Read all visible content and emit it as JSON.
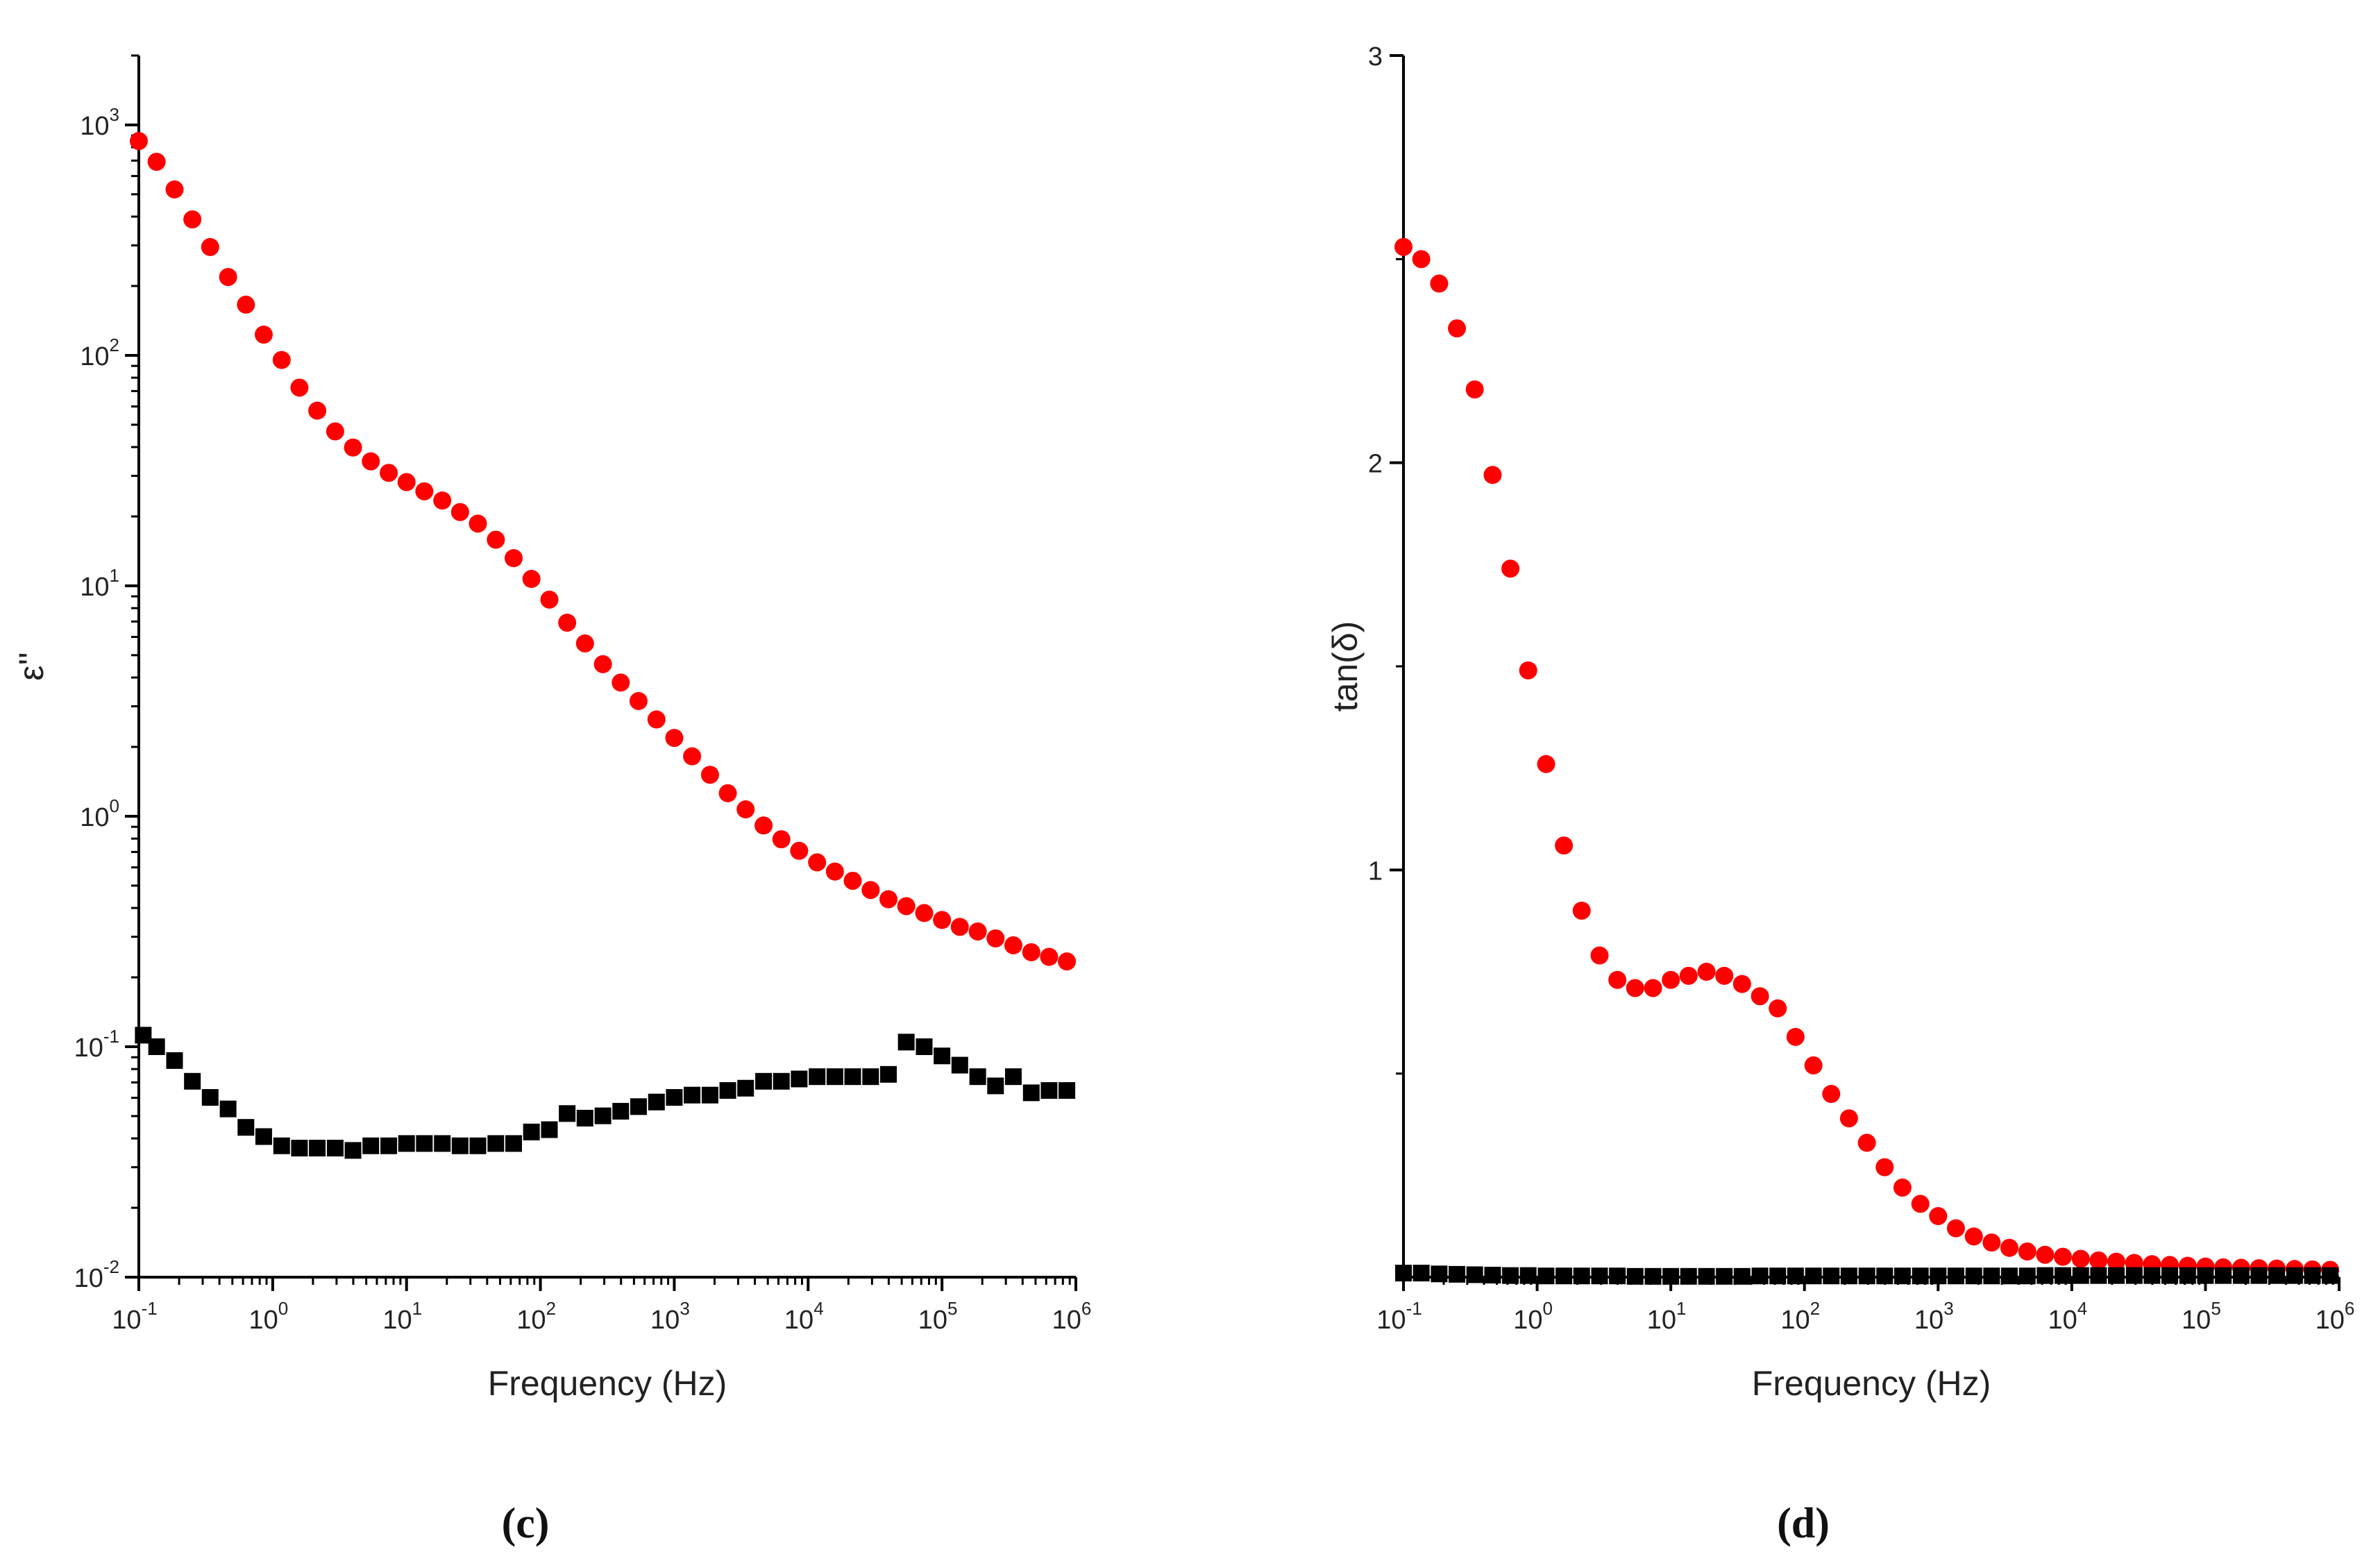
{
  "colors": {
    "series_red": "#ff0000",
    "series_black": "#000000",
    "axis": "#000000"
  },
  "chart_data": [
    {
      "id": "c",
      "type": "scatter",
      "panel_label": "(c)",
      "xlabel": "Frequency (Hz)",
      "ylabel": "ε''",
      "xscale": "log",
      "yscale": "log",
      "xlim": [
        0.1,
        1000000
      ],
      "ylim": [
        0.01,
        2000
      ],
      "xticks": [
        {
          "base": "10",
          "exp": "-1",
          "value": 0.1
        },
        {
          "base": "10",
          "exp": "0",
          "value": 1
        },
        {
          "base": "10",
          "exp": "1",
          "value": 10
        },
        {
          "base": "10",
          "exp": "2",
          "value": 100
        },
        {
          "base": "10",
          "exp": "3",
          "value": 1000
        },
        {
          "base": "10",
          "exp": "4",
          "value": 10000
        },
        {
          "base": "10",
          "exp": "5",
          "value": 100000
        },
        {
          "base": "10",
          "exp": "6",
          "value": 1000000
        }
      ],
      "yticks": [
        {
          "base": "10",
          "exp": "-2",
          "value": 0.01
        },
        {
          "base": "10",
          "exp": "-1",
          "value": 0.1
        },
        {
          "base": "10",
          "exp": "0",
          "value": 1
        },
        {
          "base": "10",
          "exp": "1",
          "value": 10
        },
        {
          "base": "10",
          "exp": "2",
          "value": 100
        },
        {
          "base": "10",
          "exp": "3",
          "value": 1000
        }
      ],
      "series": [
        {
          "name": "red circles",
          "marker": "circle",
          "color": "#ff0000",
          "x_log": [
            -1.0,
            -0.867,
            -0.733,
            -0.6,
            -0.467,
            -0.333,
            -0.2,
            -0.067,
            0.067,
            0.2,
            0.333,
            0.467,
            0.6,
            0.733,
            0.867,
            1.0,
            1.133,
            1.267,
            1.4,
            1.533,
            1.667,
            1.8,
            1.933,
            2.067,
            2.2,
            2.333,
            2.467,
            2.6,
            2.733,
            2.867,
            3.0,
            3.133,
            3.267,
            3.4,
            3.533,
            3.667,
            3.8,
            3.933,
            4.067,
            4.2,
            4.333,
            4.467,
            4.6,
            4.733,
            4.867,
            5.0,
            5.133,
            5.267,
            5.4,
            5.533,
            5.667,
            5.8,
            5.933
          ],
          "y_log": [
            2.93,
            2.84,
            2.72,
            2.59,
            2.47,
            2.34,
            2.22,
            2.09,
            1.98,
            1.86,
            1.76,
            1.67,
            1.6,
            1.54,
            1.49,
            1.45,
            1.41,
            1.37,
            1.32,
            1.27,
            1.2,
            1.12,
            1.03,
            0.94,
            0.84,
            0.75,
            0.66,
            0.58,
            0.5,
            0.42,
            0.34,
            0.26,
            0.18,
            0.1,
            0.03,
            -0.04,
            -0.1,
            -0.15,
            -0.2,
            -0.24,
            -0.28,
            -0.32,
            -0.36,
            -0.39,
            -0.42,
            -0.45,
            -0.48,
            -0.5,
            -0.53,
            -0.56,
            -0.59,
            -0.61,
            -0.63
          ]
        },
        {
          "name": "black squares",
          "marker": "square",
          "color": "#000000",
          "x_log": [
            -0.967,
            -0.867,
            -0.733,
            -0.6,
            -0.467,
            -0.333,
            -0.2,
            -0.067,
            0.067,
            0.2,
            0.333,
            0.467,
            0.6,
            0.733,
            0.867,
            1.0,
            1.133,
            1.267,
            1.4,
            1.533,
            1.667,
            1.8,
            1.933,
            2.067,
            2.2,
            2.333,
            2.467,
            2.6,
            2.733,
            2.867,
            3.0,
            3.133,
            3.267,
            3.4,
            3.533,
            3.667,
            3.8,
            3.933,
            4.067,
            4.2,
            4.333,
            4.467,
            4.6,
            4.733,
            4.867,
            5.0,
            5.133,
            5.267,
            5.4,
            5.533,
            5.667,
            5.8,
            5.933
          ],
          "y_log": [
            -0.95,
            -1.0,
            -1.06,
            -1.15,
            -1.22,
            -1.27,
            -1.35,
            -1.39,
            -1.43,
            -1.44,
            -1.44,
            -1.44,
            -1.45,
            -1.43,
            -1.43,
            -1.42,
            -1.42,
            -1.42,
            -1.43,
            -1.43,
            -1.42,
            -1.42,
            -1.37,
            -1.36,
            -1.29,
            -1.31,
            -1.3,
            -1.28,
            -1.26,
            -1.24,
            -1.22,
            -1.21,
            -1.21,
            -1.19,
            -1.18,
            -1.15,
            -1.15,
            -1.14,
            -1.13,
            -1.13,
            -1.13,
            -1.13,
            -1.12,
            -0.98,
            -1.0,
            -1.04,
            -1.08,
            -1.13,
            -1.17,
            -1.13,
            -1.2,
            -1.19,
            -1.19
          ]
        }
      ]
    },
    {
      "id": "d",
      "type": "scatter",
      "panel_label": "(d)",
      "xlabel": "Frequency (Hz)",
      "ylabel": "tan(δ)",
      "xscale": "log",
      "yscale": "linear",
      "xlim": [
        0.1,
        1000000
      ],
      "ylim": [
        0,
        3
      ],
      "xticks": [
        {
          "base": "10",
          "exp": "-1",
          "value": 0.1
        },
        {
          "base": "10",
          "exp": "0",
          "value": 1
        },
        {
          "base": "10",
          "exp": "1",
          "value": 10
        },
        {
          "base": "10",
          "exp": "2",
          "value": 100
        },
        {
          "base": "10",
          "exp": "3",
          "value": 1000
        },
        {
          "base": "10",
          "exp": "4",
          "value": 10000
        },
        {
          "base": "10",
          "exp": "5",
          "value": 100000
        },
        {
          "base": "10",
          "exp": "6",
          "value": 1000000
        }
      ],
      "yticks": [
        {
          "label": "1",
          "value": 1
        },
        {
          "label": "2",
          "value": 2
        },
        {
          "label": "3",
          "value": 3
        }
      ],
      "series": [
        {
          "name": "red circles",
          "marker": "circle",
          "color": "#ff0000",
          "x_log": [
            -1.0,
            -0.867,
            -0.733,
            -0.6,
            -0.467,
            -0.333,
            -0.2,
            -0.067,
            0.067,
            0.2,
            0.333,
            0.467,
            0.6,
            0.733,
            0.867,
            1.0,
            1.133,
            1.267,
            1.4,
            1.533,
            1.667,
            1.8,
            1.933,
            2.067,
            2.2,
            2.333,
            2.467,
            2.6,
            2.733,
            2.867,
            3.0,
            3.133,
            3.267,
            3.4,
            3.533,
            3.667,
            3.8,
            3.933,
            4.067,
            4.2,
            4.333,
            4.467,
            4.6,
            4.733,
            4.867,
            5.0,
            5.133,
            5.267,
            5.4,
            5.533,
            5.667,
            5.8,
            5.933
          ],
          "y": [
            2.53,
            2.5,
            2.44,
            2.33,
            2.18,
            1.97,
            1.74,
            1.49,
            1.26,
            1.06,
            0.9,
            0.79,
            0.73,
            0.71,
            0.71,
            0.73,
            0.74,
            0.75,
            0.74,
            0.72,
            0.69,
            0.66,
            0.59,
            0.52,
            0.45,
            0.39,
            0.33,
            0.27,
            0.22,
            0.18,
            0.15,
            0.12,
            0.1,
            0.085,
            0.072,
            0.063,
            0.055,
            0.05,
            0.045,
            0.041,
            0.038,
            0.035,
            0.032,
            0.03,
            0.028,
            0.026,
            0.024,
            0.023,
            0.022,
            0.021,
            0.02,
            0.019,
            0.018
          ]
        },
        {
          "name": "black squares",
          "marker": "square",
          "color": "#000000",
          "x_log": [
            -1.0,
            -0.867,
            -0.733,
            -0.6,
            -0.467,
            -0.333,
            -0.2,
            -0.067,
            0.067,
            0.2,
            0.333,
            0.467,
            0.6,
            0.733,
            0.867,
            1.0,
            1.133,
            1.267,
            1.4,
            1.533,
            1.667,
            1.8,
            1.933,
            2.067,
            2.2,
            2.333,
            2.467,
            2.6,
            2.733,
            2.867,
            3.0,
            3.133,
            3.267,
            3.4,
            3.533,
            3.667,
            3.8,
            3.933,
            4.067,
            4.2,
            4.333,
            4.467,
            4.6,
            4.733,
            4.867,
            5.0,
            5.133,
            5.267,
            5.4,
            5.533,
            5.667,
            5.8,
            5.933
          ],
          "y": [
            0.01,
            0.01,
            0.008,
            0.007,
            0.006,
            0.005,
            0.004,
            0.004,
            0.003,
            0.003,
            0.003,
            0.003,
            0.003,
            0.002,
            0.002,
            0.002,
            0.002,
            0.002,
            0.002,
            0.002,
            0.003,
            0.003,
            0.003,
            0.003,
            0.003,
            0.003,
            0.003,
            0.003,
            0.003,
            0.003,
            0.003,
            0.003,
            0.003,
            0.003,
            0.003,
            0.003,
            0.004,
            0.004,
            0.004,
            0.004,
            0.004,
            0.004,
            0.004,
            0.004,
            0.004,
            0.004,
            0.004,
            0.004,
            0.004,
            0.004,
            0.004,
            0.004,
            0.004
          ]
        }
      ]
    }
  ]
}
